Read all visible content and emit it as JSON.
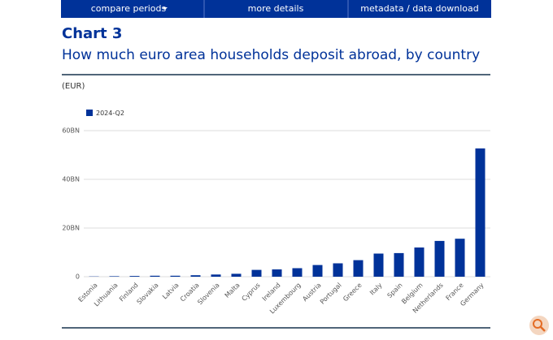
{
  "nav": [
    "compare periods",
    "more details",
    "metadata / data download"
  ],
  "chart_data": {
    "type": "bar",
    "title": "Chart 3",
    "subtitle": "How much euro area households deposit abroad, by country",
    "y_label": "(EUR)",
    "categories": [
      "Estonia",
      "Lithuania",
      "Finland",
      "Slovakia",
      "Latvia",
      "Croatia",
      "Slovenia",
      "Malta",
      "Cyprus",
      "Ireland",
      "Luxembourg",
      "Austria",
      "Portugal",
      "Greece",
      "Italy",
      "Spain",
      "Belgium",
      "Netherlands",
      "France",
      "Germany"
    ],
    "series": [
      {
        "name": "2024-Q2",
        "color": "#003299",
        "values": [
          0.1,
          0.2,
          0.3,
          0.4,
          0.4,
          0.6,
          0.9,
          1.2,
          2.8,
          3.0,
          3.5,
          4.8,
          5.5,
          6.8,
          9.5,
          9.7,
          12,
          14.7,
          15.6,
          52.7
        ]
      }
    ],
    "ylim": [
      0,
      60
    ],
    "yticks": [
      0,
      {
        "value": 20,
        "label": "20BN"
      },
      {
        "value": 40,
        "label": "40BN"
      },
      {
        "value": 60,
        "label": "60BN"
      }
    ],
    "grid": true
  }
}
